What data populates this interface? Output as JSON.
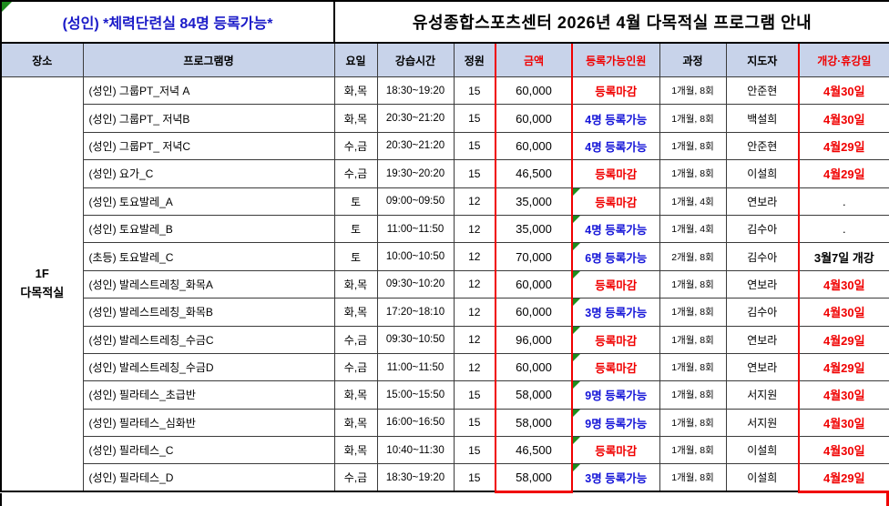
{
  "titles": {
    "left": "(성인) *체력단련실 84명 등록가능*",
    "main": "유성종합스포츠센터 2026년 4월 다목적실 프로그램 안내"
  },
  "columns": [
    "장소",
    "프로그램명",
    "요일",
    "강습시간",
    "정원",
    "금액",
    "등록가능인원",
    "과정",
    "지도자",
    "개강·휴강일"
  ],
  "location": {
    "line1": "1F",
    "line2": "다목적실"
  },
  "colors": {
    "red": "#F00000",
    "blue": "#1414D8",
    "title_blue": "#1A1AC8",
    "header_bg": "#C8D3EA",
    "green": "#1E8C1E",
    "grid": "#3B3B3B"
  },
  "rows": [
    {
      "program": "(성인) 그룹PT_저녁 A",
      "days": "화,목",
      "time": "18:30~19:20",
      "capacity": "15",
      "fee": "60,000",
      "availability": "등록마감",
      "availability_status": "closed",
      "course": "1개월, 8회",
      "instructor": "안준현",
      "open_date": "4월30일",
      "open_date_style": "red",
      "marker": false
    },
    {
      "program": "(성인) 그룹PT_ 저녁B",
      "days": "화,목",
      "time": "20:30~21:20",
      "capacity": "15",
      "fee": "60,000",
      "availability": "4명 등록가능",
      "availability_status": "open",
      "course": "1개월, 8회",
      "instructor": "백설희",
      "open_date": "4월30일",
      "open_date_style": "red",
      "marker": false
    },
    {
      "program": "(성인) 그룹PT_ 저녁C",
      "days": "수,금",
      "time": "20:30~21:20",
      "capacity": "15",
      "fee": "60,000",
      "availability": "4명 등록가능",
      "availability_status": "open",
      "course": "1개월, 8회",
      "instructor": "안준현",
      "open_date": "4월29일",
      "open_date_style": "red",
      "marker": false
    },
    {
      "program": "(성인) 요가_C",
      "days": "수,금",
      "time": "19:30~20:20",
      "capacity": "15",
      "fee": "46,500",
      "availability": "등록마감",
      "availability_status": "closed",
      "course": "1개월, 8회",
      "instructor": "이설희",
      "open_date": "4월29일",
      "open_date_style": "red",
      "marker": false
    },
    {
      "program": "(성인) 토요발레_A",
      "days": "토",
      "time": "09:00~09:50",
      "capacity": "12",
      "fee": "35,000",
      "availability": "등록마감",
      "availability_status": "closed",
      "course": "1개월, 4회",
      "instructor": "연보라",
      "open_date": ".",
      "open_date_style": "dot",
      "marker": true
    },
    {
      "program": "(성인) 토요발레_B",
      "days": "토",
      "time": "11:00~11:50",
      "capacity": "12",
      "fee": "35,000",
      "availability": "4명 등록가능",
      "availability_status": "open",
      "course": "1개월, 4회",
      "instructor": "김수아",
      "open_date": ".",
      "open_date_style": "dot",
      "marker": true
    },
    {
      "program": "(초등) 토요발레_C",
      "days": "토",
      "time": "10:00~10:50",
      "capacity": "12",
      "fee": "70,000",
      "availability": "6명 등록가능",
      "availability_status": "open",
      "course": "2개월, 8회",
      "instructor": "김수아",
      "open_date": "3월7일 개강",
      "open_date_style": "black",
      "marker": true
    },
    {
      "program": "(성인) 발레스트레칭_화목A",
      "days": "화,목",
      "time": "09:30~10:20",
      "capacity": "12",
      "fee": "60,000",
      "availability": "등록마감",
      "availability_status": "closed",
      "course": "1개월, 8회",
      "instructor": "연보라",
      "open_date": "4월30일",
      "open_date_style": "red",
      "marker": true
    },
    {
      "program": "(성인) 발레스트레칭_화목B",
      "days": "화,목",
      "time": "17:20~18:10",
      "capacity": "12",
      "fee": "60,000",
      "availability": "3명 등록가능",
      "availability_status": "open",
      "course": "1개월, 8회",
      "instructor": "김수아",
      "open_date": "4월30일",
      "open_date_style": "red",
      "marker": true
    },
    {
      "program": "(성인) 발레스트레칭_수금C",
      "days": "수,금",
      "time": "09:30~10:50",
      "capacity": "12",
      "fee": "96,000",
      "availability": "등록마감",
      "availability_status": "closed",
      "course": "1개월, 8회",
      "instructor": "연보라",
      "open_date": "4월29일",
      "open_date_style": "red",
      "marker": true
    },
    {
      "program": "(성인) 발레스트레칭_수금D",
      "days": "수,금",
      "time": "11:00~11:50",
      "capacity": "12",
      "fee": "60,000",
      "availability": "등록마감",
      "availability_status": "closed",
      "course": "1개월, 8회",
      "instructor": "연보라",
      "open_date": "4월29일",
      "open_date_style": "red",
      "marker": true
    },
    {
      "program": "(성인) 필라테스_초급반",
      "days": "화,목",
      "time": "15:00~15:50",
      "capacity": "15",
      "fee": "58,000",
      "availability": "9명 등록가능",
      "availability_status": "open",
      "course": "1개월, 8회",
      "instructor": "서지원",
      "open_date": "4월30일",
      "open_date_style": "red",
      "marker": true
    },
    {
      "program": "(성인) 필라테스_심화반",
      "days": "화,목",
      "time": "16:00~16:50",
      "capacity": "15",
      "fee": "58,000",
      "availability": "9명 등록가능",
      "availability_status": "open",
      "course": "1개월, 8회",
      "instructor": "서지원",
      "open_date": "4월30일",
      "open_date_style": "red",
      "marker": true
    },
    {
      "program": "(성인) 필라테스_C",
      "days": "화,목",
      "time": "10:40~11:30",
      "capacity": "15",
      "fee": "46,500",
      "availability": "등록마감",
      "availability_status": "closed",
      "course": "1개월, 8회",
      "instructor": "이설희",
      "open_date": "4월30일",
      "open_date_style": "red",
      "marker": true
    },
    {
      "program": "(성인) 필라테스_D",
      "days": "수,금",
      "time": "18:30~19:20",
      "capacity": "15",
      "fee": "58,000",
      "availability": "3명 등록가능",
      "availability_status": "open",
      "course": "1개월, 8회",
      "instructor": "이설희",
      "open_date": "4월29일",
      "open_date_style": "red",
      "marker": true
    }
  ]
}
